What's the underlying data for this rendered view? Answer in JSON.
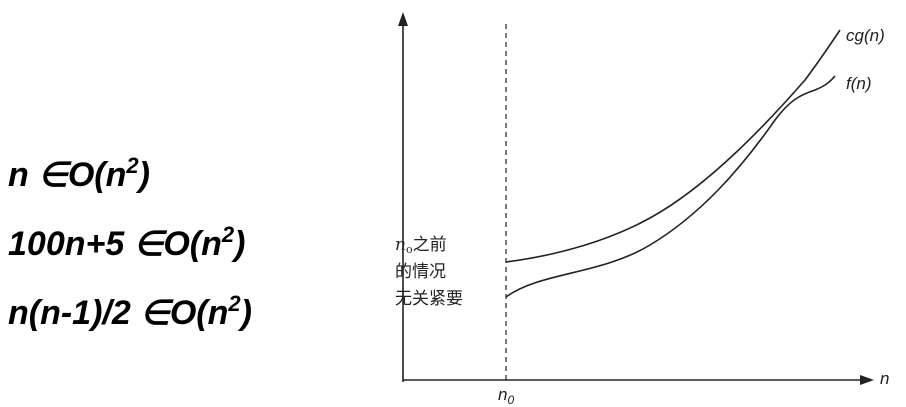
{
  "formulas": [
    {
      "text": "n ∈O(n",
      "sup": "2",
      "close": ")"
    },
    {
      "text": "100n+5 ∈O(n",
      "sup": "2",
      "close": ")"
    },
    {
      "text": "n(n-1)/2 ∈O(n",
      "sup": "2",
      "close": ")"
    }
  ],
  "graph": {
    "curve_labels": [
      "cg(n)",
      "f(n)"
    ],
    "x_axis_label": "n",
    "threshold_label": {
      "base": "n",
      "sub": "0"
    },
    "note": {
      "var": "n",
      "sub": "o",
      "lines": [
        "之前",
        "的情况",
        "无关紧要"
      ]
    }
  }
}
